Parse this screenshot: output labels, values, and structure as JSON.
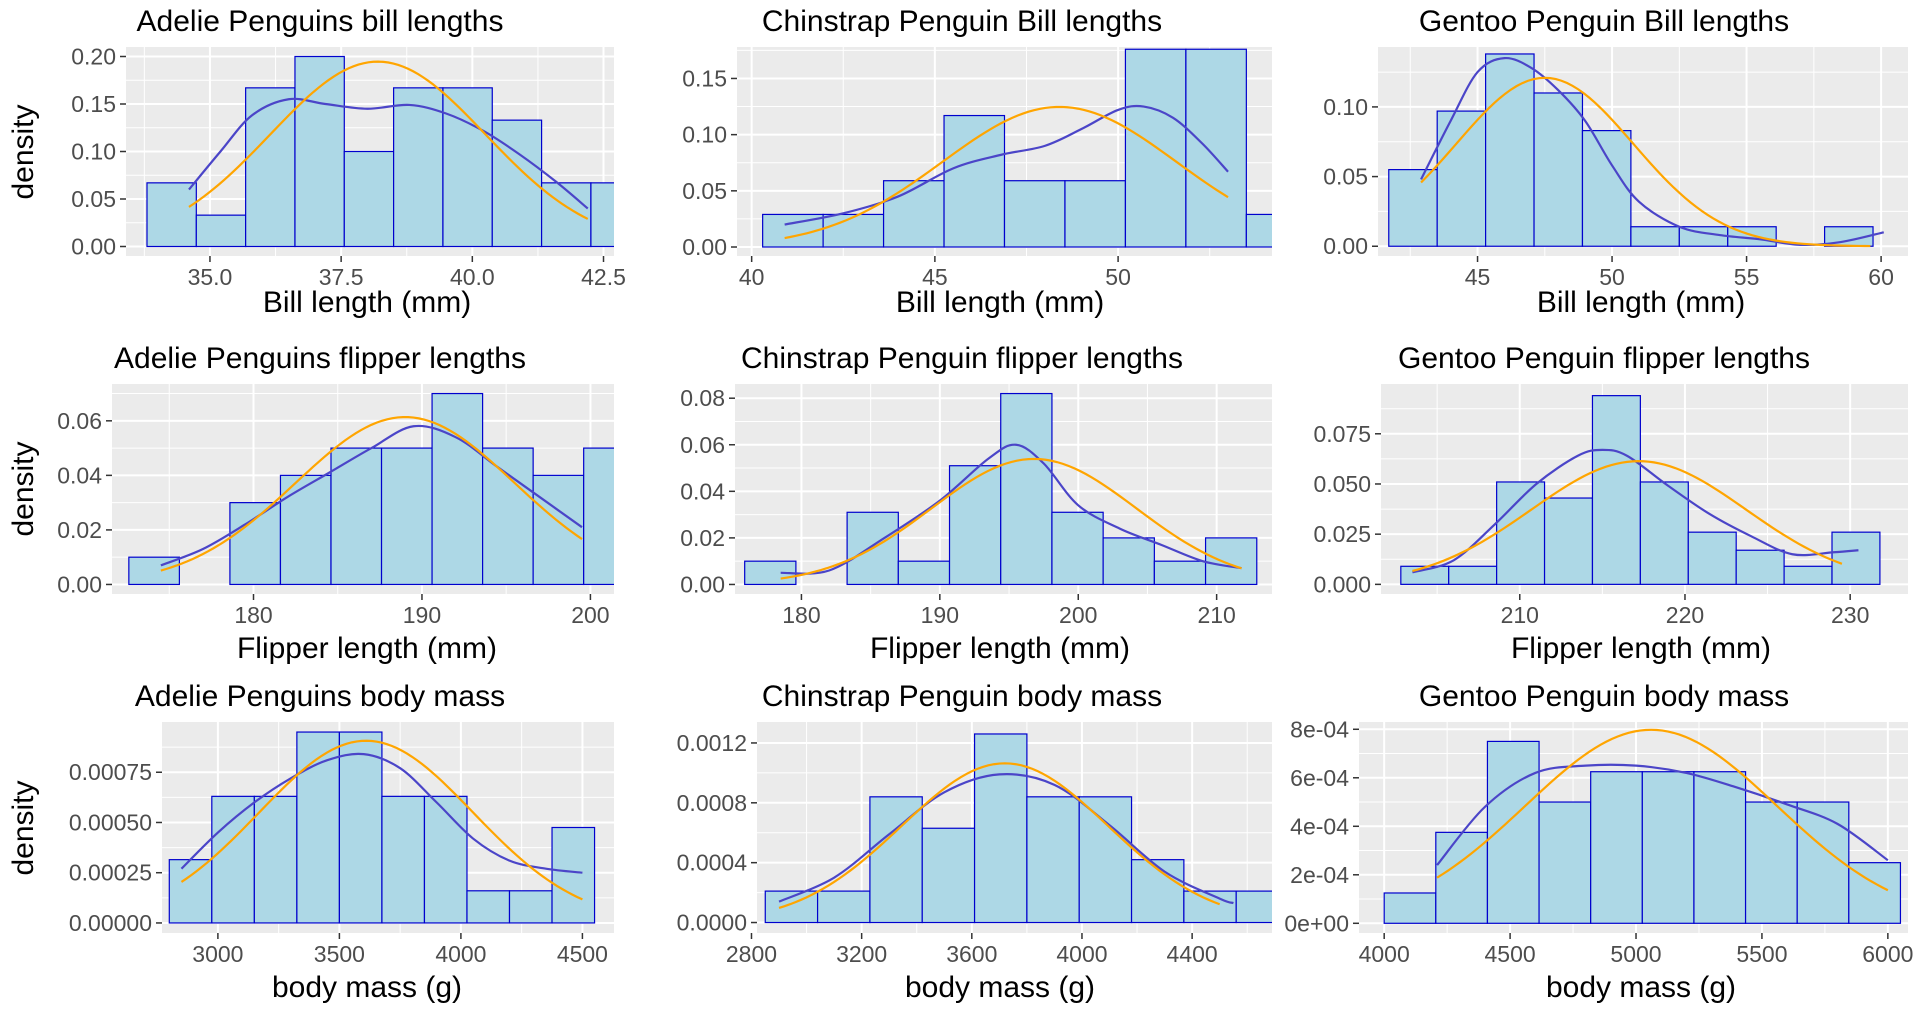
{
  "colors": {
    "panel_bg": "#ebebeb",
    "bar_fill": "#add8e6",
    "bar_stroke": "#0000cd",
    "kde_line": "#4b45c8",
    "normal_line": "#ffa500"
  },
  "chart_data": [
    {
      "type": "bar",
      "title": "Adelie Penguins bill lengths",
      "xlabel": "Bill length (mm)",
      "ylabel": "density",
      "xlim": [
        33.4,
        42.7
      ],
      "ylim": [
        -0.01,
        0.21
      ],
      "xticks": [
        35.0,
        37.5,
        40.0,
        42.5
      ],
      "xtick_labels": [
        "35.0",
        "37.5",
        "40.0",
        "42.5"
      ],
      "yticks": [
        0,
        0.05,
        0.1,
        0.15,
        0.2
      ],
      "ytick_labels": [
        "0.00",
        "0.05",
        "0.10",
        "0.15",
        "0.20"
      ],
      "bin_edges": [
        33.8,
        34.74,
        35.68,
        36.62,
        37.56,
        38.5,
        39.44,
        40.38,
        41.32,
        42.26
      ],
      "values": [
        0.067,
        0.033,
        0.167,
        0.2,
        0.1,
        0.167,
        0.167,
        0.133,
        0.067,
        0.067
      ],
      "kde": {
        "x": [
          34.6,
          35.2,
          35.8,
          36.5,
          37.2,
          38.0,
          38.8,
          39.5,
          40.2,
          40.9,
          41.6,
          42.2
        ],
        "y": [
          0.06,
          0.1,
          0.138,
          0.155,
          0.15,
          0.145,
          0.149,
          0.14,
          0.122,
          0.097,
          0.068,
          0.04
        ]
      },
      "normal": {
        "mean": 38.2,
        "sd": 2.05
      },
      "normal_x": [
        34.6,
        42.2
      ]
    },
    {
      "type": "bar",
      "title": "Chinstrap Penguin Bill lengths",
      "xlabel": "Bill length (mm)",
      "ylabel": "",
      "xlim": [
        39.6,
        54.2
      ],
      "ylim": [
        -0.008,
        0.178
      ],
      "xticks": [
        40,
        45,
        50
      ],
      "xtick_labels": [
        "40",
        "45",
        "50"
      ],
      "yticks": [
        0,
        0.05,
        0.1,
        0.15
      ],
      "ytick_labels": [
        "0.00",
        "0.05",
        "0.10",
        "0.15"
      ],
      "bin_edges": [
        40.3,
        41.95,
        43.6,
        45.25,
        46.9,
        48.55,
        50.2,
        51.85,
        53.5
      ],
      "values": [
        0.029,
        0.029,
        0.059,
        0.117,
        0.059,
        0.059,
        0.176,
        0.176,
        0.029
      ],
      "kde": {
        "x": [
          40.9,
          42.5,
          44.0,
          45.5,
          46.8,
          48.0,
          49.0,
          50.0,
          50.7,
          51.5,
          52.3,
          53.0
        ],
        "y": [
          0.02,
          0.03,
          0.045,
          0.07,
          0.082,
          0.09,
          0.105,
          0.122,
          0.125,
          0.115,
          0.092,
          0.067
        ]
      },
      "normal": {
        "mean": 48.4,
        "sd": 3.2
      },
      "normal_x": [
        40.9,
        53.0
      ]
    },
    {
      "type": "bar",
      "title": "Gentoo Penguin Bill lengths",
      "xlabel": "Bill length (mm)",
      "ylabel": "",
      "xlim": [
        41.3,
        61.0
      ],
      "ylim": [
        -0.007,
        0.143
      ],
      "xticks": [
        45,
        50,
        55,
        60
      ],
      "xtick_labels": [
        "45",
        "50",
        "55",
        "60"
      ],
      "yticks": [
        0,
        0.05,
        0.1
      ],
      "ytick_labels": [
        "0.00",
        "0.05",
        "0.10"
      ],
      "bin_edges": [
        41.7,
        43.5,
        45.3,
        47.1,
        48.9,
        50.7,
        52.5,
        54.3,
        56.1,
        57.9,
        59.7
      ],
      "values": [
        0.055,
        0.097,
        0.138,
        0.11,
        0.083,
        0.014,
        0.014,
        0.014,
        0.0,
        0.014
      ],
      "kde": {
        "x": [
          42.9,
          44.0,
          45.0,
          46.0,
          47.0,
          48.0,
          49.0,
          50.0,
          51.0,
          52.5,
          54.0,
          55.5,
          57.0,
          58.5,
          60.1
        ],
        "y": [
          0.048,
          0.09,
          0.125,
          0.135,
          0.128,
          0.112,
          0.09,
          0.058,
          0.032,
          0.014,
          0.008,
          0.005,
          0.001,
          0.003,
          0.01
        ]
      },
      "normal": {
        "mean": 47.5,
        "sd": 3.3
      },
      "normal_x": [
        42.9,
        59.6
      ]
    },
    {
      "type": "bar",
      "title": "Adelie Penguins flipper lengths",
      "xlabel": "Flipper length (mm)",
      "ylabel": "density",
      "xlim": [
        171.6,
        201.4
      ],
      "ylim": [
        -0.0035,
        0.0735
      ],
      "xticks": [
        180,
        190,
        200
      ],
      "xtick_labels": [
        "180",
        "190",
        "200"
      ],
      "yticks": [
        0,
        0.02,
        0.04,
        0.06
      ],
      "ytick_labels": [
        "0.00",
        "0.02",
        "0.04",
        "0.06"
      ],
      "bin_edges": [
        172.6,
        175.6,
        178.6,
        181.6,
        184.6,
        187.6,
        190.6,
        193.6,
        196.6,
        199.6,
        202.6
      ],
      "values": [
        0.01,
        0.0,
        0.03,
        0.04,
        0.05,
        0.05,
        0.07,
        0.05,
        0.04,
        0.05
      ],
      "kde": {
        "x": [
          174.5,
          177.0,
          179.5,
          182.0,
          184.5,
          187.0,
          189.5,
          192.0,
          194.5,
          197.0,
          199.5
        ],
        "y": [
          0.007,
          0.013,
          0.022,
          0.032,
          0.041,
          0.05,
          0.058,
          0.054,
          0.043,
          0.032,
          0.021
        ]
      },
      "normal": {
        "mean": 189.0,
        "sd": 6.5
      },
      "normal_x": [
        174.5,
        199.5
      ]
    },
    {
      "type": "bar",
      "title": "Chinstrap Penguin flipper lengths",
      "xlabel": "Flipper length (mm)",
      "ylabel": "",
      "xlim": [
        175.2,
        214.0
      ],
      "ylim": [
        -0.0041,
        0.0861
      ],
      "xticks": [
        180,
        190,
        200,
        210
      ],
      "xtick_labels": [
        "180",
        "190",
        "200",
        "210"
      ],
      "yticks": [
        0,
        0.02,
        0.04,
        0.06,
        0.08
      ],
      "ytick_labels": [
        "0.00",
        "0.02",
        "0.04",
        "0.06",
        "0.08"
      ],
      "bin_edges": [
        175.9,
        179.6,
        183.3,
        187.0,
        190.7,
        194.4,
        198.1,
        201.8,
        205.5,
        209.2,
        212.9
      ],
      "values": [
        0.01,
        0.0,
        0.031,
        0.01,
        0.051,
        0.082,
        0.031,
        0.02,
        0.01,
        0.02
      ],
      "kde": {
        "x": [
          178.5,
          182.0,
          186.0,
          190.0,
          193.5,
          195.5,
          197.5,
          200.0,
          203.0,
          206.0,
          209.0,
          211.8
        ],
        "y": [
          0.005,
          0.006,
          0.02,
          0.036,
          0.054,
          0.06,
          0.052,
          0.034,
          0.024,
          0.017,
          0.01,
          0.007
        ]
      },
      "normal": {
        "mean": 196.8,
        "sd": 7.4
      },
      "normal_x": [
        178.5,
        211.8
      ]
    },
    {
      "type": "bar",
      "title": "Gentoo Penguin flipper lengths",
      "xlabel": "Flipper length (mm)",
      "ylabel": "",
      "xlim": [
        201.6,
        233.5
      ],
      "ylim": [
        -0.0048,
        0.0998
      ],
      "xticks": [
        210,
        220,
        230
      ],
      "xtick_labels": [
        "210",
        "220",
        "230"
      ],
      "yticks": [
        0,
        0.025,
        0.05,
        0.075
      ],
      "ytick_labels": [
        "0.000",
        "0.025",
        "0.050",
        "0.075"
      ],
      "bin_edges": [
        202.8,
        205.7,
        208.6,
        211.5,
        214.4,
        217.3,
        220.2,
        223.1,
        226.0,
        228.9,
        231.8
      ],
      "values": [
        0.009,
        0.009,
        0.051,
        0.043,
        0.094,
        0.051,
        0.026,
        0.017,
        0.009,
        0.026
      ],
      "kde": {
        "x": [
          203.5,
          206.0,
          208.5,
          211.0,
          213.5,
          215.0,
          216.5,
          219.0,
          221.5,
          224.0,
          226.5,
          229.0,
          230.5
        ],
        "y": [
          0.006,
          0.012,
          0.03,
          0.05,
          0.064,
          0.067,
          0.064,
          0.049,
          0.035,
          0.024,
          0.015,
          0.016,
          0.017
        ]
      },
      "normal": {
        "mean": 217.2,
        "sd": 6.5
      },
      "normal_x": [
        203.5,
        229.5
      ]
    },
    {
      "type": "bar",
      "title": "Adelie Penguins body mass",
      "xlabel": "body mass (g)",
      "ylabel": "density",
      "xlim": [
        2770,
        4630
      ],
      "ylim": [
        -5e-05,
        0.001
      ],
      "xticks": [
        3000,
        3500,
        4000,
        4500
      ],
      "xtick_labels": [
        "3000",
        "3500",
        "4000",
        "4500"
      ],
      "yticks": [
        0,
        0.00025,
        0.0005,
        0.00075
      ],
      "ytick_labels": [
        "0.00000",
        "0.00025",
        "0.00050",
        "0.00075"
      ],
      "bin_edges": [
        2800,
        2975,
        3150,
        3325,
        3500,
        3675,
        3850,
        4025,
        4200,
        4375,
        4550
      ],
      "values": [
        0.000315,
        0.00063,
        0.00063,
        0.00095,
        0.00095,
        0.00063,
        0.00063,
        0.00016,
        0.00016,
        0.000475
      ],
      "kde": {
        "x": [
          2850,
          3000,
          3150,
          3300,
          3450,
          3600,
          3750,
          3900,
          4050,
          4200,
          4350,
          4500
        ],
        "y": [
          0.00027,
          0.00045,
          0.0006,
          0.00072,
          0.00081,
          0.00084,
          0.00077,
          0.0006,
          0.00042,
          0.00031,
          0.00027,
          0.00025
        ]
      },
      "normal": {
        "mean": 3610,
        "sd": 440
      },
      "normal_x": [
        2850,
        4500
      ]
    },
    {
      "type": "bar",
      "title": "Chinstrap Penguin body mass",
      "xlabel": "body mass (g)",
      "ylabel": "",
      "xlim": [
        2820,
        4690
      ],
      "ylim": [
        -7e-05,
        0.00134
      ],
      "xticks": [
        2800,
        3200,
        3600,
        4000,
        4400
      ],
      "xtick_labels": [
        "2800",
        "3200",
        "3600",
        "4000",
        "4400"
      ],
      "yticks": [
        0,
        0.0004,
        0.0008,
        0.0012
      ],
      "ytick_labels": [
        "0.0000",
        "0.0004",
        "0.0008",
        "0.0012"
      ],
      "bin_edges": [
        2850,
        3040,
        3230,
        3420,
        3610,
        3800,
        3990,
        4180,
        4370,
        4560,
        4750
      ],
      "values": [
        0.00021,
        0.00021,
        0.00084,
        0.00063,
        0.00126,
        0.00084,
        0.00084,
        0.00042,
        0.00021,
        0.00021
      ],
      "kde": {
        "x": [
          2900,
          3100,
          3300,
          3500,
          3700,
          3900,
          4100,
          4300,
          4500,
          4550
        ],
        "y": [
          0.00014,
          0.0003,
          0.00059,
          0.00087,
          0.00099,
          0.00092,
          0.00065,
          0.00034,
          0.00016,
          0.00013
        ]
      },
      "normal": {
        "mean": 3720,
        "sd": 375
      },
      "normal_x": [
        2900,
        4500
      ]
    },
    {
      "type": "bar",
      "title": "Gentoo Penguin body mass",
      "xlabel": "body mass (g)",
      "ylabel": "",
      "xlim": [
        3900,
        6080
      ],
      "ylim": [
        -4e-05,
        0.00083
      ],
      "xticks": [
        4000,
        4500,
        5000,
        5500,
        6000
      ],
      "xtick_labels": [
        "4000",
        "4500",
        "5000",
        "5500",
        "6000"
      ],
      "yticks": [
        0,
        0.0002,
        0.0004,
        0.0006,
        0.0008
      ],
      "ytick_labels": [
        "0e+00",
        "2e-04",
        "4e-04",
        "6e-04",
        "8e-04"
      ],
      "bin_edges": [
        4000,
        4205,
        4410,
        4615,
        4820,
        5025,
        5230,
        5435,
        5640,
        5845,
        6050
      ],
      "values": [
        0.000125,
        0.000375,
        0.00075,
        0.0005,
        0.000625,
        0.000625,
        0.000625,
        0.0005,
        0.0005,
        0.00025
      ],
      "kde": {
        "x": [
          4210,
          4400,
          4600,
          4800,
          5000,
          5200,
          5400,
          5600,
          5800,
          6000
        ],
        "y": [
          0.00024,
          0.00048,
          0.00062,
          0.00065,
          0.00065,
          0.00062,
          0.00056,
          0.00049,
          0.00041,
          0.00026
        ]
      },
      "normal": {
        "mean": 5060,
        "sd": 500
      },
      "normal_x": [
        4210,
        6000
      ]
    }
  ]
}
